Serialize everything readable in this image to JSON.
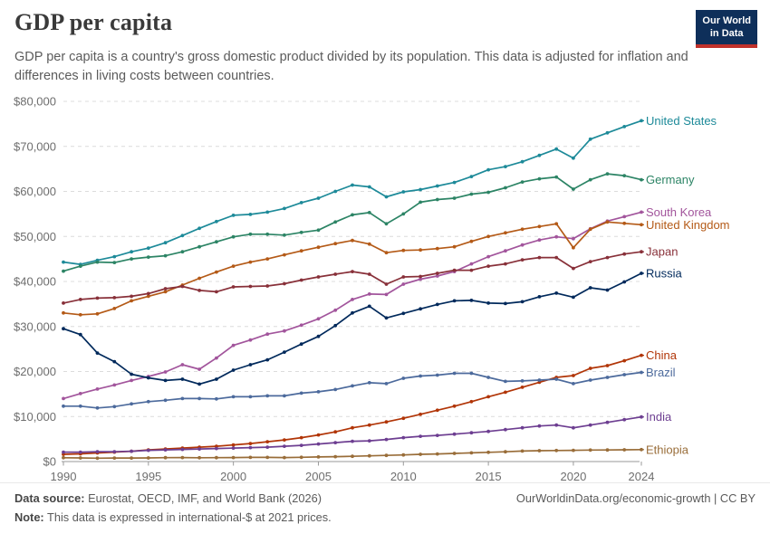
{
  "header": {
    "title": "GDP per capita",
    "subtitle": "GDP per capita is a country's gross domestic product divided by its population. This data is adjusted for inflation and differences in living costs between countries.",
    "logo": {
      "line1": "Our World",
      "line2": "in Data",
      "bg_color": "#0e2f5a",
      "bar_color": "#c0312b"
    }
  },
  "footer": {
    "source_label": "Data source:",
    "source_text": " Eurostat, OECD, IMF, and World Bank (2026)",
    "note_label": "Note:",
    "note_text": " This data is expressed in international-$ at 2021 prices.",
    "link_text": "OurWorldinData.org/economic-growth | CC BY"
  },
  "chart_data": {
    "type": "line",
    "title": "GDP per capita",
    "xlabel": "",
    "ylabel": "",
    "xlim": [
      1990,
      2024
    ],
    "ylim": [
      0,
      80000
    ],
    "grid": "horizontal-dashed",
    "legend_position": "end-of-line-labels",
    "units": "international-$ at 2021 prices",
    "x_ticks": [
      1990,
      1995,
      2000,
      2005,
      2010,
      2015,
      2020,
      2024
    ],
    "y_ticks": [
      {
        "value": 0,
        "label": "$0"
      },
      {
        "value": 10000,
        "label": "$10,000"
      },
      {
        "value": 20000,
        "label": "$20,000"
      },
      {
        "value": 30000,
        "label": "$30,000"
      },
      {
        "value": 40000,
        "label": "$40,000"
      },
      {
        "value": 50000,
        "label": "$50,000"
      },
      {
        "value": 60000,
        "label": "$60,000"
      },
      {
        "value": 70000,
        "label": "$70,000"
      },
      {
        "value": 80000,
        "label": "$80,000"
      }
    ],
    "x": [
      1990,
      1991,
      1992,
      1993,
      1994,
      1995,
      1996,
      1997,
      1998,
      1999,
      2000,
      2001,
      2002,
      2003,
      2004,
      2005,
      2006,
      2007,
      2008,
      2009,
      2010,
      2011,
      2012,
      2013,
      2014,
      2015,
      2016,
      2017,
      2018,
      2019,
      2020,
      2021,
      2022,
      2023,
      2024
    ],
    "series": [
      {
        "name": "United States",
        "color": "#1d8a99",
        "values": [
          44300,
          43800,
          44700,
          45500,
          46600,
          47400,
          48600,
          50200,
          51800,
          53300,
          54700,
          54900,
          55400,
          56200,
          57500,
          58500,
          60000,
          61400,
          61000,
          58800,
          59900,
          60400,
          61200,
          62000,
          63300,
          64800,
          65500,
          66600,
          68000,
          69400,
          67400,
          71600,
          73000,
          74400,
          75700
        ]
      },
      {
        "name": "Germany",
        "color": "#2c8465",
        "values": [
          42300,
          43400,
          44300,
          44200,
          45000,
          45400,
          45700,
          46600,
          47700,
          48800,
          49900,
          50500,
          50500,
          50300,
          50900,
          51400,
          53200,
          54800,
          55300,
          52800,
          55000,
          57600,
          58200,
          58500,
          59400,
          59800,
          60800,
          62100,
          62800,
          63200,
          60500,
          62600,
          63900,
          63500,
          62600
        ]
      },
      {
        "name": "South Korea",
        "color": "#a2559c",
        "values": [
          14000,
          15100,
          16100,
          17000,
          18000,
          18900,
          19900,
          21500,
          20500,
          23000,
          25800,
          27000,
          28300,
          29000,
          30300,
          31700,
          33600,
          36000,
          37200,
          37100,
          39400,
          40500,
          41200,
          42200,
          43900,
          45500,
          46800,
          48100,
          49200,
          49900,
          49500,
          51700,
          53400,
          54400,
          55400
        ]
      },
      {
        "name": "United Kingdom",
        "color": "#b45a17",
        "values": [
          33000,
          32600,
          32800,
          34000,
          35700,
          36700,
          37700,
          39200,
          40700,
          42100,
          43400,
          44300,
          45000,
          45900,
          46800,
          47600,
          48400,
          49100,
          48300,
          46400,
          46900,
          47000,
          47300,
          47700,
          48900,
          50000,
          50800,
          51600,
          52200,
          52800,
          47500,
          51600,
          53200,
          52900,
          52600
        ]
      },
      {
        "name": "Japan",
        "color": "#883039",
        "values": [
          35200,
          36000,
          36300,
          36400,
          36700,
          37300,
          38400,
          38900,
          38000,
          37700,
          38800,
          38900,
          39000,
          39500,
          40300,
          41000,
          41600,
          42200,
          41600,
          39400,
          41000,
          41100,
          41800,
          42500,
          42500,
          43400,
          43900,
          44800,
          45300,
          45300,
          42900,
          44400,
          45300,
          46100,
          46600
        ]
      },
      {
        "name": "Russia",
        "color": "#00295b",
        "values": [
          29500,
          28200,
          24100,
          22200,
          19400,
          18600,
          18000,
          18300,
          17200,
          18300,
          20300,
          21500,
          22600,
          24300,
          26100,
          27800,
          30200,
          33000,
          34500,
          31900,
          32900,
          33900,
          34900,
          35700,
          35800,
          35200,
          35100,
          35500,
          36600,
          37400,
          36500,
          38600,
          38100,
          39900,
          41800
        ]
      },
      {
        "name": "China",
        "color": "#b13507",
        "values": [
          1600,
          1700,
          1900,
          2100,
          2300,
          2600,
          2800,
          3000,
          3200,
          3400,
          3700,
          4000,
          4400,
          4800,
          5300,
          5900,
          6600,
          7500,
          8100,
          8800,
          9600,
          10500,
          11400,
          12300,
          13300,
          14400,
          15400,
          16500,
          17600,
          18700,
          19100,
          20700,
          21300,
          22400,
          23600
        ]
      },
      {
        "name": "Brazil",
        "color": "#4c6a9c",
        "values": [
          12300,
          12300,
          11900,
          12200,
          12800,
          13300,
          13600,
          14000,
          14000,
          13900,
          14400,
          14400,
          14600,
          14600,
          15200,
          15500,
          16000,
          16800,
          17500,
          17300,
          18500,
          19000,
          19200,
          19600,
          19600,
          18700,
          17800,
          17900,
          18100,
          18300,
          17300,
          18100,
          18700,
          19300,
          19800
        ]
      },
      {
        "name": "India",
        "color": "#6d3e91",
        "values": [
          2100,
          2100,
          2200,
          2200,
          2300,
          2500,
          2600,
          2700,
          2800,
          2900,
          3000,
          3100,
          3200,
          3400,
          3600,
          3900,
          4200,
          4500,
          4600,
          4900,
          5300,
          5600,
          5800,
          6100,
          6400,
          6700,
          7100,
          7500,
          7900,
          8100,
          7500,
          8100,
          8700,
          9300,
          9900
        ]
      },
      {
        "name": "Ethiopia",
        "color": "#996d39",
        "values": [
          850,
          800,
          750,
          780,
          780,
          800,
          870,
          880,
          850,
          870,
          890,
          930,
          920,
          890,
          950,
          1020,
          1090,
          1170,
          1270,
          1360,
          1470,
          1600,
          1680,
          1800,
          1930,
          2060,
          2180,
          2330,
          2420,
          2450,
          2500,
          2550,
          2580,
          2620,
          2650
        ]
      }
    ]
  }
}
